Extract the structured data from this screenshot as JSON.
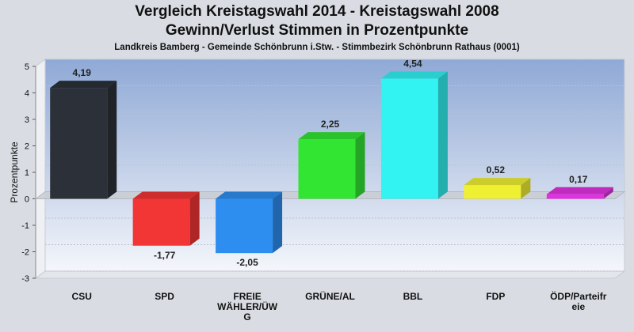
{
  "chart_data": {
    "type": "bar",
    "title": "Vergleich Kreistagswahl 2014 - Kreistagswahl 2008",
    "subtitle_line": "Gewinn/Verlust Stimmen in Prozentpunkte",
    "subtitle": "Landkreis Bamberg - Gemeinde Schönbrunn i.Stw. - Stimmbezirk Schönbrunn Rathaus (0001)",
    "xlabel": "",
    "ylabel": "Prozentpunkte",
    "ylim": [
      -3,
      5
    ],
    "yticks": [
      "5",
      "4",
      "3",
      "2",
      "1",
      "0",
      "-1",
      "-2",
      "-3"
    ],
    "grid": true,
    "categories": [
      [
        "CSU"
      ],
      [
        "SPD"
      ],
      [
        "FREIE",
        "WÄHLER/ÜW",
        "G"
      ],
      [
        "GRÜNE/AL"
      ],
      [
        "BBL"
      ],
      [
        "FDP"
      ],
      [
        "ÖDP/Parteifr",
        "eie"
      ]
    ],
    "values": [
      4.19,
      -1.77,
      -2.05,
      2.25,
      4.54,
      0.52,
      0.17
    ],
    "value_labels": [
      "4,19",
      "-1,77",
      "-2,05",
      "2,25",
      "4,54",
      "0,52",
      "0,17"
    ],
    "colors": [
      "#2c3038",
      "#f23535",
      "#2e8ef0",
      "#33e533",
      "#33f2f2",
      "#f0f033",
      "#e033e0"
    ],
    "background_color": "#d9dde3"
  }
}
